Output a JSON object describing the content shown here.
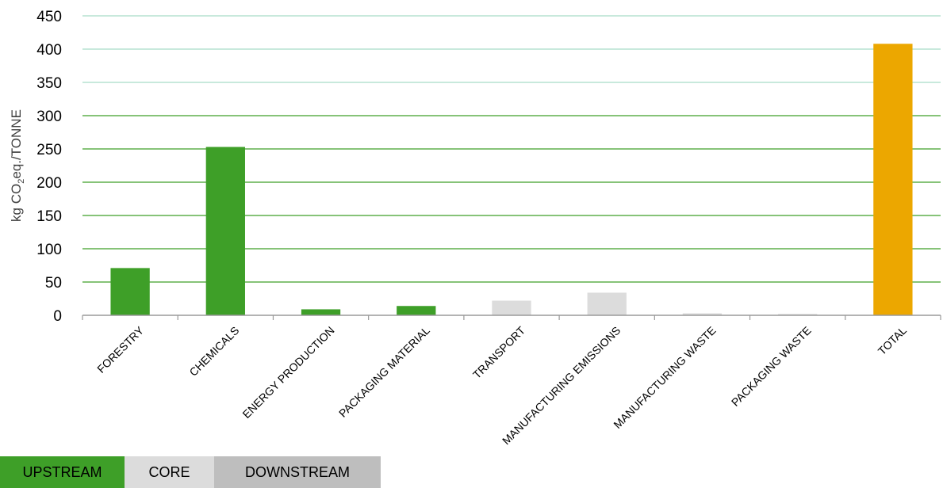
{
  "chart_data": {
    "type": "bar",
    "categories": [
      "FORESTRY",
      "CHEMICALS",
      "ENERGY PRODUCTION",
      "PACKAGING MATERIAL",
      "TRANSPORT",
      "MANUFACTURING EMISSIONS",
      "MANUFACTURING WASTE",
      "PACKAGING WASTE",
      "TOTAL"
    ],
    "values": [
      71,
      253,
      9,
      14,
      22,
      34,
      3,
      2,
      408
    ],
    "groups": [
      "UPSTREAM",
      "UPSTREAM",
      "UPSTREAM",
      "UPSTREAM",
      "CORE",
      "CORE",
      "CORE",
      "CORE",
      "TOTAL"
    ],
    "bar_colors": [
      "#3e9f28",
      "#3e9f28",
      "#3e9f28",
      "#3e9f28",
      "#dcdcdc",
      "#dcdcdc",
      "#dcdcdc",
      "#dcdcdc",
      "#eca700"
    ],
    "ylabel": "kg CO₂eq./TONNE",
    "ylim": [
      0,
      450
    ],
    "yticks": [
      0,
      50,
      100,
      150,
      200,
      250,
      300,
      350,
      400,
      450
    ],
    "grid": true,
    "gridline_colors": {
      "low": "#3e9f28",
      "high": "#a8dcc8"
    },
    "legend_position": "bottom-left"
  },
  "legend": [
    {
      "label": "UPSTREAM",
      "color": "#3e9f28"
    },
    {
      "label": "CORE",
      "color": "#dcdcdc"
    },
    {
      "label": "DOWNSTREAM",
      "color": "#bebebe"
    }
  ]
}
